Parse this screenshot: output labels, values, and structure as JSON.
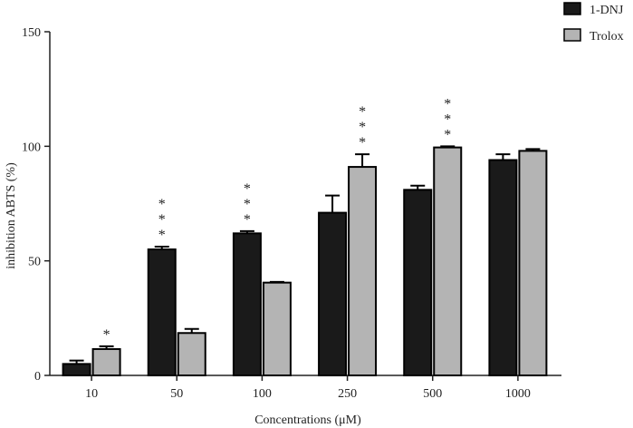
{
  "chart_data": {
    "type": "bar",
    "title": "",
    "xlabel": "Concentrations (μM)",
    "ylabel": "inhibition ABTS (%)",
    "ylim": [
      0,
      150
    ],
    "yticks": [
      "0",
      "50",
      "100",
      "150"
    ],
    "categories": [
      "10",
      "50",
      "100",
      "250",
      "500",
      "1000"
    ],
    "series": [
      {
        "name": "1-DNJ",
        "color": "#1a1a1a",
        "values": [
          5,
          55,
          62,
          71,
          81,
          94
        ],
        "error": [
          1.5,
          1.2,
          1.0,
          7.5,
          1.8,
          2.5
        ],
        "significance": [
          "",
          "***",
          "***",
          "",
          "",
          ""
        ]
      },
      {
        "name": "Trolox",
        "color": "#b4b4b4",
        "values": [
          11.5,
          18.5,
          40.5,
          91,
          99.5,
          98
        ],
        "error": [
          1.2,
          1.8,
          0.3,
          5.5,
          0.5,
          0.8
        ],
        "significance": [
          "*",
          "",
          "",
          "***",
          "***",
          ""
        ]
      }
    ],
    "legend_position": "top-right",
    "grid": false
  }
}
